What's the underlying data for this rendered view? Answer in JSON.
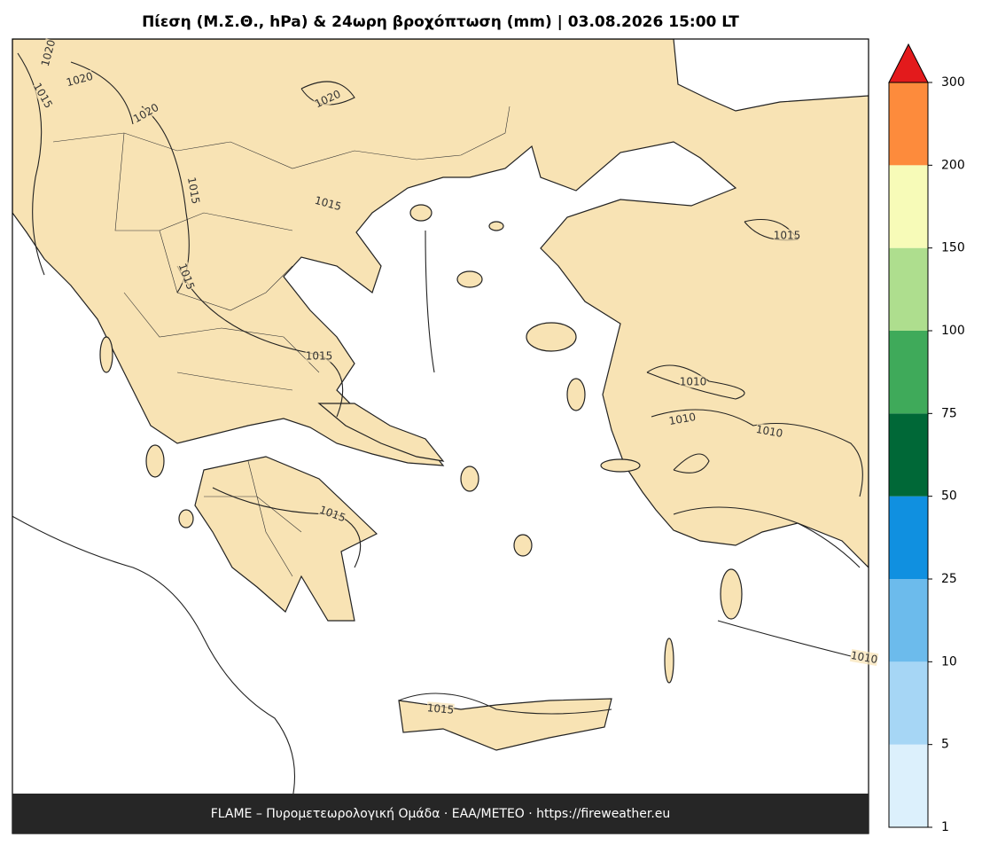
{
  "title": "Πίεση (Μ.Σ.Θ., hPa) & 24ωρη βροχόπτωση (mm)  |  03.08.2026 15:00 LT",
  "footer": "FLAME – Πυρομετεωρολογική Ομάδα · ΕΑΑ/METEO · https://fireweather.eu",
  "contour_labels": [
    1020,
    1020,
    1015,
    1020,
    1020,
    1015,
    1015,
    1015,
    1015,
    1015,
    1015,
    1010,
    1010,
    1010,
    1015,
    1010
  ],
  "colorbar": {
    "ticks": [
      1,
      5,
      10,
      25,
      50,
      75,
      100,
      150,
      200,
      300
    ],
    "colors": [
      "#dcf0fc",
      "#a6d6f5",
      "#6cbbec",
      "#1090e0",
      "#006837",
      "#3faa5a",
      "#aede8e",
      "#f7fbb8",
      "#fd8b3c"
    ],
    "extend_color": "#e31a1c"
  }
}
